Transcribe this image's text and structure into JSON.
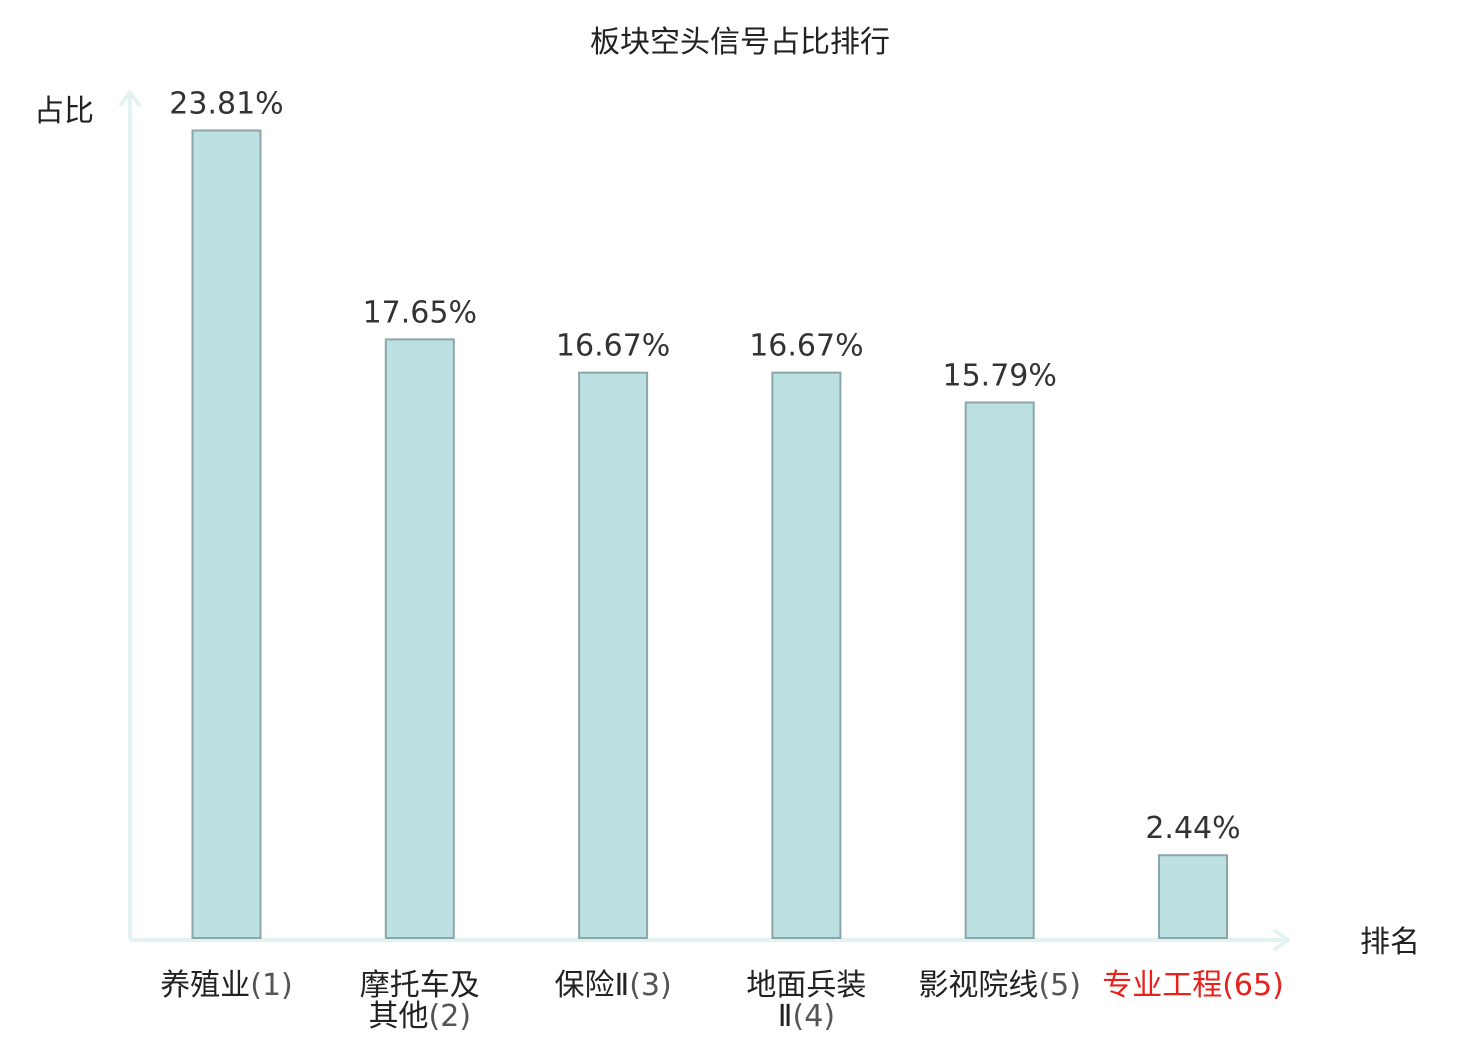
{
  "chart_data": {
    "type": "bar",
    "title": "板块空头信号占比排行",
    "ylabel": "占比",
    "xlabel": "排名",
    "ylim": [
      0,
      25
    ],
    "grid": false,
    "legend": "none",
    "categories": [
      {
        "lines": [
          {
            "name": "养殖业",
            "rank": "(1)"
          }
        ],
        "highlight": false
      },
      {
        "lines": [
          {
            "name": "摩托车及",
            "rank": ""
          },
          {
            "name": "其他",
            "rank": "(2)"
          }
        ],
        "highlight": false
      },
      {
        "lines": [
          {
            "name": "保险Ⅱ",
            "rank": "(3)"
          }
        ],
        "highlight": false
      },
      {
        "lines": [
          {
            "name": "地面兵装",
            "rank": ""
          },
          {
            "name": "Ⅱ",
            "rank": "(4)"
          }
        ],
        "highlight": false
      },
      {
        "lines": [
          {
            "name": "影视院线",
            "rank": "(5)"
          }
        ],
        "highlight": false
      },
      {
        "lines": [
          {
            "name": "专业工程",
            "rank": "(65)"
          }
        ],
        "highlight": true
      }
    ],
    "values": [
      23.81,
      17.65,
      16.67,
      16.67,
      15.79,
      2.44
    ],
    "value_labels": [
      "23.81%",
      "17.65%",
      "16.67%",
      "16.67%",
      "15.79%",
      "2.44%"
    ]
  },
  "colors": {
    "bar_fill": "#bde0e2",
    "bar_stroke": "#8aa6a8",
    "axis": "#e3f3f1",
    "highlight": "#e8211d"
  }
}
